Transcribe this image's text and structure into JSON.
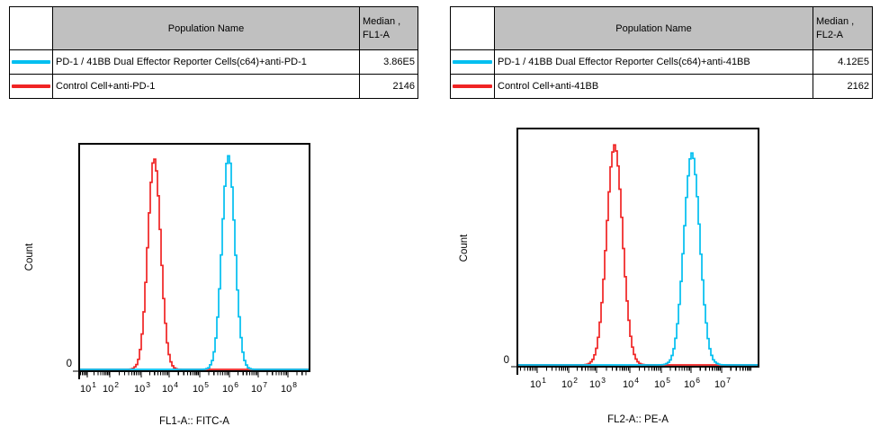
{
  "colors": {
    "cyan": "#00BFF0",
    "red": "#F02424",
    "table_header_bg": "#C0C0C0",
    "border": "#000000"
  },
  "panels": [
    {
      "table": {
        "header": {
          "population_label": "Population Name",
          "median_label": "Median ,",
          "median_sub_label": "FL1-A"
        },
        "rows": [
          {
            "swatch_color": "#00BFF0",
            "swatch_name": "cyan-line-swatch",
            "population": "PD-1 / 41BB Dual Effector Reporter Cells(c64)+anti-PD-1",
            "median": "3.86E5"
          },
          {
            "swatch_color": "#F02424",
            "swatch_name": "red-line-swatch",
            "population": "Control Cell+anti-PD-1",
            "median": "2146"
          }
        ]
      }
    },
    {
      "table": {
        "header": {
          "population_label": "Population Name",
          "median_label": "Median ,",
          "median_sub_label": "FL2-A"
        },
        "rows": [
          {
            "swatch_color": "#00BFF0",
            "swatch_name": "cyan-line-swatch",
            "population": "PD-1 / 41BB Dual Effector Reporter Cells(c64)+anti-41BB",
            "median": "4.12E5"
          },
          {
            "swatch_color": "#F02424",
            "swatch_name": "red-line-swatch",
            "population": "Control Cell+anti-41BB",
            "median": "2162"
          }
        ]
      }
    }
  ],
  "chart_data": [
    {
      "type": "line",
      "subtype": "flow-cytometry-histogram",
      "title": "",
      "xlabel": "FL1-A:: FITC-A",
      "ylabel": "Count",
      "x_scale": "log10",
      "x_tick_exponents": [
        1,
        2,
        3,
        4,
        5,
        6,
        7,
        8
      ],
      "y_zero_label": "0",
      "grid": false,
      "legend": "none",
      "series": [
        {
          "name": "PD-1 / 41BB Dual Effector Reporter Cells(c64)+anti-PD-1",
          "color": "#00BFF0",
          "median": "3.86E5",
          "peak_center_log10": 6.0,
          "peak_sigma_log10": 0.22,
          "peak_height_frac": 0.94
        },
        {
          "name": "Control Cell+anti-PD-1",
          "color": "#F02424",
          "median": "2146",
          "peak_center_log10": 3.5,
          "peak_sigma_log10": 0.23,
          "peak_height_frac": 0.93
        }
      ]
    },
    {
      "type": "line",
      "subtype": "flow-cytometry-histogram",
      "title": "",
      "xlabel": "FL2-A:: PE-A",
      "ylabel": "Count",
      "x_scale": "log10",
      "x_tick_exponents": [
        1,
        2,
        3,
        4,
        5,
        6,
        7
      ],
      "y_zero_label": "0",
      "grid": false,
      "legend": "none",
      "series": [
        {
          "name": "PD-1 / 41BB Dual Effector Reporter Cells(c64)+anti-41BB",
          "color": "#00BFF0",
          "median": "4.12E5",
          "peak_center_log10": 6.06,
          "peak_sigma_log10": 0.26,
          "peak_height_frac": 0.886
        },
        {
          "name": "Control Cell+anti-41BB",
          "color": "#F02424",
          "median": "2162",
          "peak_center_log10": 3.57,
          "peak_sigma_log10": 0.24,
          "peak_height_frac": 0.92
        }
      ]
    }
  ]
}
